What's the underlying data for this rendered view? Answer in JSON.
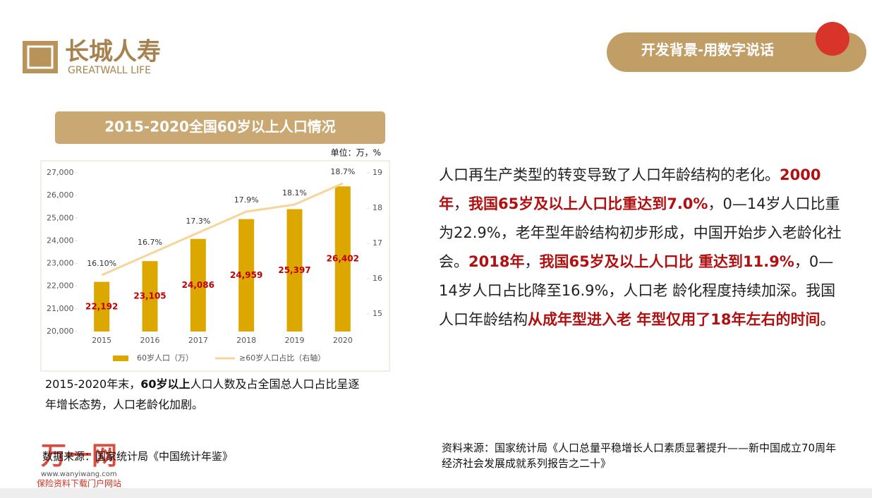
{
  "header": {
    "logo": "长城人寿",
    "logo_en": "GREATWALL LIFE",
    "badge": "开发背景-用数字说话"
  },
  "chart_data": {
    "type": "bar",
    "title": "2015-2020全国60岁以上人口情况",
    "unit": "单位：万，%",
    "categories": [
      "2015",
      "2016",
      "2017",
      "2018",
      "2019",
      "2020"
    ],
    "series": [
      {
        "name": "60岁人口（万）",
        "color": "#dca800",
        "values": [
          22192,
          23105,
          24086,
          24959,
          25397,
          26402
        ],
        "value_labels": [
          "22,192",
          "23,105",
          "24,086",
          "24,959",
          "25,397",
          "26,402"
        ]
      },
      {
        "name": "≥60岁人口占比（右轴）",
        "color": "#f7d59a",
        "axis": "y2",
        "values": [
          16.1,
          16.7,
          17.3,
          17.9,
          18.1,
          18.7
        ],
        "value_labels": [
          "16.10%",
          "16.7%",
          "17.3%",
          "17.9%",
          "18.1%",
          "18.7%"
        ]
      }
    ],
    "ylim": [
      20000,
      27000
    ],
    "yticks": [
      {
        "value": 20000,
        "label": "20,000"
      },
      {
        "value": 21000,
        "label": "21,000"
      },
      {
        "value": 22000,
        "label": "22,000"
      },
      {
        "value": 23000,
        "label": "23,000"
      },
      {
        "value": 24000,
        "label": "24,000"
      },
      {
        "value": 25000,
        "label": "25,000"
      },
      {
        "value": 26000,
        "label": "26,000"
      },
      {
        "value": 27000,
        "label": "27,000"
      }
    ],
    "y2lim": [
      14.5,
      19
    ],
    "y2ticks": [
      15,
      16,
      17,
      18,
      19
    ]
  },
  "bullet": [
    {
      "text": "2015-2020年末，"
    },
    {
      "text": "60岁以上",
      "bold": true
    },
    {
      "text": "人口人数及占全国总人口占比呈逐年增长态势，人口老龄化加剧。"
    }
  ],
  "source_left": "数据来源：国家统计局《中国统计年鉴》",
  "paragraph": [
    {
      "text": "人口再生产类型的转变导致了人口年龄结构的老化。"
    },
    {
      "text": "2000年",
      "color": "#b01010"
    },
    {
      "text": "，"
    },
    {
      "text": "我国65岁及以上人口比重达到7.0%",
      "color": "#b01010"
    },
    {
      "text": "，0—14岁人口比重为22.9%，老年型年龄结构初步形成，中国开始步入老龄化社会。"
    },
    {
      "text": "2018年",
      "color": "#b01010"
    },
    {
      "text": "，"
    },
    {
      "text": "我国65岁及以上人口比 重达到11.9%",
      "color": "#b01010"
    },
    {
      "text": "，0—14岁人口占比降至16.9%，人口老 龄化程度持续加深。我国人口年龄结构"
    },
    {
      "text": "从成年型进入老 年型仅用了18年左右的时间",
      "color": "#b01010"
    },
    {
      "text": "。"
    }
  ],
  "source_right": "资料来源：国家统计局《人口总量平稳增长人口素质显著提升——新中国成立70周年经济社会发展成就系列报告之二十》",
  "watermark": {
    "name": "万一网",
    "url": "www.wanyiwang.com",
    "slogan": "保险资料下载门户网站"
  }
}
